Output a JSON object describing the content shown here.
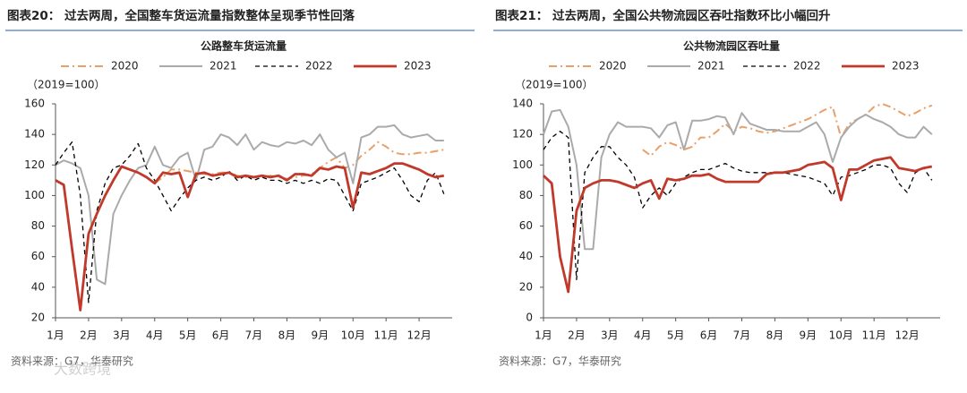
{
  "chart_data": [
    {
      "type": "line",
      "header": "图表20：  过去两周，全国整车货运流量指数整体呈现季节性回落",
      "title": "公路整车货运流量",
      "y_label": "（2019=100）",
      "source": "资料来源：G7，华泰研究",
      "watermark": "大数跨境",
      "x": [
        1,
        1.25,
        1.5,
        1.75,
        2,
        2.25,
        2.5,
        2.75,
        3,
        3.25,
        3.5,
        3.75,
        4,
        4.25,
        4.5,
        4.75,
        5,
        5.25,
        5.5,
        5.75,
        6,
        6.25,
        6.5,
        6.75,
        7,
        7.25,
        7.5,
        7.75,
        8,
        8.25,
        8.5,
        8.75,
        9,
        9.25,
        9.5,
        9.75,
        10,
        10.25,
        10.5,
        10.75,
        11,
        11.25,
        11.5,
        11.75,
        12,
        12.25,
        12.5,
        12.75
      ],
      "xlim": [
        1,
        13
      ],
      "xticks": [
        {
          "value": 1,
          "label": "1月"
        },
        {
          "value": 2,
          "label": "2月"
        },
        {
          "value": 3,
          "label": "3月"
        },
        {
          "value": 4,
          "label": "4月"
        },
        {
          "value": 5,
          "label": "5月"
        },
        {
          "value": 6,
          "label": "6月"
        },
        {
          "value": 7,
          "label": "7月"
        },
        {
          "value": 8,
          "label": "8月"
        },
        {
          "value": 9,
          "label": "9月"
        },
        {
          "value": 10,
          "label": "10月"
        },
        {
          "value": 11,
          "label": "11月"
        },
        {
          "value": 12,
          "label": "12月"
        }
      ],
      "ylim": [
        20,
        160
      ],
      "yticks": [
        20,
        40,
        60,
        80,
        100,
        120,
        140,
        160
      ],
      "series": [
        {
          "name": "2020",
          "color": "#e8a06a",
          "dash": "dash-dot",
          "values": [
            null,
            null,
            null,
            null,
            null,
            null,
            null,
            null,
            null,
            null,
            null,
            null,
            108,
            112,
            117,
            117,
            116,
            115,
            114,
            114,
            115,
            115,
            113,
            112,
            112,
            112,
            113,
            112,
            111,
            112,
            113,
            114,
            118,
            122,
            125,
            118,
            120,
            126,
            130,
            135,
            132,
            128,
            127,
            127,
            128,
            128,
            129,
            130
          ]
        },
        {
          "name": "2021",
          "color": "#aaaaaa",
          "dash": "solid",
          "values": [
            120,
            123,
            121,
            118,
            100,
            45,
            42,
            88,
            100,
            110,
            118,
            120,
            132,
            120,
            118,
            125,
            128,
            110,
            130,
            132,
            140,
            138,
            133,
            140,
            130,
            135,
            133,
            132,
            135,
            134,
            136,
            133,
            140,
            130,
            125,
            128,
            108,
            138,
            140,
            145,
            145,
            146,
            140,
            138,
            139,
            140,
            136,
            136
          ]
        },
        {
          "name": "2022",
          "color": "#000000",
          "dash": "dash",
          "values": [
            120,
            128,
            135,
            100,
            30,
            90,
            108,
            118,
            120,
            126,
            134,
            118,
            110,
            100,
            90,
            98,
            105,
            110,
            112,
            110,
            112,
            116,
            110,
            113,
            110,
            112,
            110,
            110,
            108,
            110,
            108,
            110,
            108,
            111,
            110,
            100,
            90,
            108,
            110,
            112,
            115,
            118,
            110,
            100,
            96,
            110,
            115,
            101
          ]
        },
        {
          "name": "2023",
          "color": "#c0392b",
          "dash": "solid",
          "values": [
            110,
            107,
            65,
            25,
            75,
            88,
            100,
            110,
            119,
            117,
            115,
            112,
            108,
            115,
            114,
            115,
            99,
            114,
            115,
            113,
            114,
            115,
            112,
            113,
            112,
            113,
            112,
            113,
            110,
            114,
            114,
            113,
            118,
            117,
            119,
            118,
            92,
            115,
            114,
            116,
            118,
            121,
            121,
            119,
            117,
            114,
            112,
            113
          ]
        }
      ]
    },
    {
      "type": "line",
      "header": "图表21：  过去两周，全国公共物流园区吞吐指数环比小幅回升",
      "title": "公共物流园区吞吐量",
      "y_label": "（2019=100）",
      "source": "资料来源：G7，华泰研究",
      "x": [
        1,
        1.25,
        1.5,
        1.75,
        2,
        2.25,
        2.5,
        2.75,
        3,
        3.25,
        3.5,
        3.75,
        4,
        4.25,
        4.5,
        4.75,
        5,
        5.25,
        5.5,
        5.75,
        6,
        6.25,
        6.5,
        6.75,
        7,
        7.25,
        7.5,
        7.75,
        8,
        8.25,
        8.5,
        8.75,
        9,
        9.25,
        9.5,
        9.75,
        10,
        10.25,
        10.5,
        10.75,
        11,
        11.25,
        11.5,
        11.75,
        12,
        12.25,
        12.5,
        12.75
      ],
      "xlim": [
        1,
        13
      ],
      "xticks": [
        {
          "value": 1,
          "label": "1月"
        },
        {
          "value": 2,
          "label": "2月"
        },
        {
          "value": 3,
          "label": "3月"
        },
        {
          "value": 4,
          "label": "4月"
        },
        {
          "value": 5,
          "label": "5月"
        },
        {
          "value": 6,
          "label": "6月"
        },
        {
          "value": 7,
          "label": "7月"
        },
        {
          "value": 8,
          "label": "8月"
        },
        {
          "value": 9,
          "label": "9月"
        },
        {
          "value": 10,
          "label": "10月"
        },
        {
          "value": 11,
          "label": "11月"
        },
        {
          "value": 12,
          "label": "12月"
        }
      ],
      "ylim": [
        0,
        140
      ],
      "yticks": [
        0,
        20,
        40,
        60,
        80,
        100,
        120,
        140
      ],
      "series": [
        {
          "name": "2020",
          "color": "#e8a06a",
          "dash": "dash-dot",
          "values": [
            null,
            null,
            null,
            null,
            null,
            null,
            null,
            null,
            null,
            null,
            null,
            null,
            110,
            106,
            112,
            115,
            113,
            110,
            112,
            118,
            118,
            122,
            127,
            122,
            125,
            124,
            122,
            121,
            122,
            124,
            126,
            128,
            130,
            133,
            136,
            138,
            118,
            127,
            130,
            133,
            138,
            140,
            138,
            135,
            132,
            134,
            137,
            139
          ]
        },
        {
          "name": "2021",
          "color": "#aaaaaa",
          "dash": "solid",
          "values": [
            120,
            135,
            136,
            125,
            100,
            45,
            45,
            105,
            120,
            128,
            125,
            125,
            125,
            124,
            118,
            126,
            128,
            110,
            129,
            129,
            130,
            132,
            131,
            120,
            134,
            127,
            125,
            123,
            123,
            122,
            122,
            122,
            125,
            128,
            120,
            102,
            118,
            125,
            130,
            133,
            130,
            128,
            125,
            120,
            118,
            118,
            125,
            120
          ]
        },
        {
          "name": "2022",
          "color": "#000000",
          "dash": "dash",
          "values": [
            110,
            118,
            122,
            118,
            25,
            95,
            105,
            112,
            112,
            105,
            100,
            92,
            72,
            80,
            85,
            80,
            88,
            92,
            95,
            97,
            97,
            99,
            101,
            98,
            96,
            95,
            95,
            95,
            95,
            95,
            94,
            93,
            92,
            90,
            88,
            80,
            92,
            93,
            95,
            97,
            100,
            100,
            98,
            88,
            82,
            95,
            98,
            90
          ]
        },
        {
          "name": "2023",
          "color": "#c0392b",
          "dash": "solid",
          "values": [
            93,
            88,
            40,
            17,
            70,
            85,
            88,
            90,
            90,
            89,
            87,
            85,
            88,
            90,
            78,
            91,
            90,
            91,
            93,
            93,
            94,
            91,
            89,
            89,
            89,
            89,
            89,
            94,
            95,
            95,
            96,
            97,
            100,
            101,
            102,
            98,
            77,
            97,
            97,
            100,
            103,
            104,
            105,
            98,
            97,
            96,
            98,
            99
          ]
        }
      ]
    }
  ]
}
